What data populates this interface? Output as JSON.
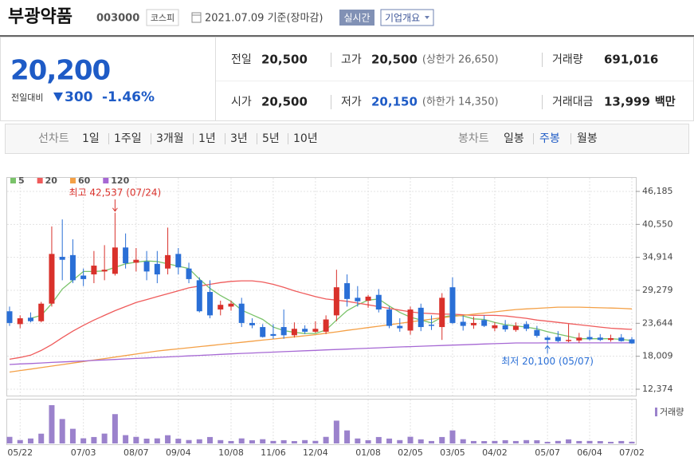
{
  "header": {
    "title": "부광약품",
    "code": "003000",
    "market": "코스피",
    "date": "2021.07.09 기준(장마감)",
    "realtime": "실시간",
    "company": "기업개요"
  },
  "quote": {
    "price": "20,200",
    "change_label": "전일대비",
    "change": "300",
    "change_rate": "-1.46%"
  },
  "summary": [
    {
      "label": "전일",
      "value": "20,500"
    },
    {
      "label": "고가",
      "value": "20,500",
      "note": "(상한가 26,650)"
    },
    {
      "label": "거래량",
      "value": "691,016"
    },
    {
      "label": "시가",
      "value": "20,500"
    },
    {
      "label": "저가",
      "value": "20,150",
      "note": "(하한가 14,350)"
    },
    {
      "label": "거래대금",
      "value": "13,999",
      "unit": "백만"
    }
  ],
  "tabs": {
    "line_label": "선차트",
    "line": [
      "1일",
      "1주일",
      "3개월",
      "1년",
      "3년",
      "5년",
      "10년"
    ],
    "candle_label": "봉차트",
    "candle": [
      "일봉",
      "주봉",
      "월봉"
    ],
    "active_candle": 1
  },
  "chart_data": {
    "type": "candlestick",
    "categories": [
      null,
      "05/22",
      null,
      null,
      null,
      null,
      null,
      "07/03",
      null,
      null,
      null,
      null,
      "08/07",
      null,
      null,
      null,
      "09/04",
      null,
      null,
      null,
      null,
      "10/08",
      null,
      null,
      null,
      "11/06",
      null,
      null,
      null,
      "12/04",
      null,
      null,
      null,
      null,
      "01/08",
      null,
      null,
      null,
      "02/05",
      null,
      null,
      null,
      "03/05",
      null,
      null,
      null,
      "04/02",
      null,
      null,
      null,
      null,
      "05/07",
      null,
      null,
      null,
      "06/04",
      null,
      null,
      null,
      "07/02"
    ],
    "open": [
      25700,
      23500,
      24600,
      24000,
      27000,
      35000,
      35300,
      31800,
      32000,
      32500,
      32100,
      36600,
      34000,
      34200,
      33800,
      33000,
      35500,
      33000,
      31000,
      29000,
      26000,
      26500,
      27000,
      23700,
      23000,
      21800,
      23000,
      21600,
      22700,
      22200,
      22200,
      25000,
      30500,
      28000,
      27500,
      28500,
      26000,
      23200,
      22400,
      26300,
      23400,
      23000,
      29800,
      23900,
      23300,
      24200,
      22800,
      23300,
      22500,
      23500,
      22500,
      21200,
      21300,
      20600,
      20700,
      21300,
      21200,
      20800,
      21200,
      20900
    ],
    "high": [
      26500,
      25000,
      25500,
      27300,
      40200,
      41400,
      38000,
      33000,
      36000,
      37000,
      42537,
      39000,
      36500,
      36000,
      36000,
      40000,
      36500,
      34000,
      31500,
      31000,
      27500,
      27500,
      28000,
      24500,
      23500,
      23500,
      26000,
      23800,
      23300,
      24000,
      25000,
      32800,
      32000,
      30000,
      28500,
      29500,
      26500,
      24500,
      26500,
      27000,
      25000,
      28800,
      31500,
      25000,
      24800,
      25000,
      23800,
      24200,
      23800,
      24000,
      23200,
      21500,
      22300,
      23500,
      22000,
      22500,
      21800,
      21700,
      21800,
      21300
    ],
    "low": [
      23200,
      22800,
      23800,
      23800,
      26500,
      31000,
      30500,
      30000,
      30500,
      31000,
      31800,
      33000,
      32500,
      31000,
      30500,
      32000,
      32000,
      30500,
      25500,
      24500,
      25000,
      25800,
      23000,
      22800,
      21200,
      21000,
      21000,
      21200,
      21800,
      22000,
      21800,
      24000,
      26500,
      26500,
      26300,
      25500,
      22800,
      22200,
      21700,
      22300,
      22500,
      20800,
      23500,
      22400,
      22700,
      23000,
      22300,
      22200,
      22200,
      22300,
      21200,
      20100,
      20400,
      20400,
      20300,
      20700,
      20600,
      20500,
      20500,
      20150
    ],
    "close": [
      23700,
      24500,
      24000,
      27000,
      35500,
      34500,
      31000,
      31200,
      33500,
      32800,
      36600,
      33900,
      34500,
      32500,
      32000,
      35300,
      33200,
      31200,
      25700,
      25000,
      26800,
      27000,
      23700,
      23300,
      21300,
      21500,
      21600,
      22700,
      22200,
      22700,
      24300,
      29800,
      27800,
      27400,
      28200,
      26000,
      23200,
      22800,
      26000,
      23000,
      23200,
      28000,
      23700,
      23200,
      23700,
      23200,
      23300,
      22600,
      23200,
      22700,
      21500,
      20800,
      20600,
      20800,
      21200,
      20900,
      20800,
      21100,
      20600,
      20200
    ],
    "up_color": "#d9312b",
    "down_color": "#2a6fd6",
    "series": [
      {
        "name": "5",
        "color": "#7ac36a",
        "values": [
          null,
          null,
          24500,
          25000,
          27000,
          29500,
          31000,
          32500,
          32500,
          32600,
          33200,
          33800,
          34100,
          34300,
          34200,
          33800,
          33400,
          33000,
          31200,
          29600,
          28400,
          27400,
          25900,
          25100,
          24300,
          23000,
          22400,
          22100,
          21900,
          21900,
          22500,
          24200,
          25800,
          26800,
          27600,
          27800,
          26600,
          25500,
          24700,
          24200,
          23700,
          24700,
          25000,
          24900,
          24400,
          24300,
          23800,
          23400,
          23200,
          23000,
          22700,
          22200,
          21800,
          21400,
          21000,
          21000,
          21000,
          21000,
          20900,
          20700
        ]
      },
      {
        "name": "20",
        "color": "#ef5b5b",
        "values": [
          17500,
          17800,
          18200,
          19000,
          20000,
          21200,
          22300,
          23300,
          24200,
          25000,
          25800,
          26500,
          27200,
          27700,
          28200,
          28700,
          29200,
          29700,
          30000,
          30300,
          30600,
          30800,
          30900,
          30900,
          30700,
          30300,
          29800,
          29200,
          28700,
          28200,
          27800,
          27600,
          27400,
          27100,
          26800,
          26500,
          26200,
          25900,
          25600,
          25400,
          25300,
          25200,
          25200,
          25100,
          25000,
          25000,
          25000,
          24900,
          24700,
          24500,
          24200,
          24000,
          23800,
          23600,
          23400,
          23200,
          23000,
          22800,
          22700,
          22600
        ]
      },
      {
        "name": "60",
        "color": "#f4a046",
        "values": [
          15300,
          15560,
          15810,
          16070,
          16330,
          16590,
          16840,
          17100,
          17360,
          17610,
          17870,
          18130,
          18380,
          18640,
          18900,
          19090,
          19270,
          19460,
          19650,
          19830,
          20020,
          20210,
          20390,
          20580,
          20770,
          20950,
          21140,
          21330,
          21510,
          21700,
          21940,
          22180,
          22430,
          22670,
          22910,
          23150,
          23390,
          23640,
          23880,
          24120,
          24360,
          24600,
          24800,
          25000,
          25200,
          25400,
          25600,
          25800,
          26000,
          26100,
          26200,
          26300,
          26400,
          26400,
          26400,
          26350,
          26300,
          26250,
          26200,
          26100
        ]
      },
      {
        "name": "120",
        "color": "#a668d4",
        "values": [
          16600,
          16690,
          16770,
          16860,
          16950,
          17030,
          17120,
          17200,
          17290,
          17380,
          17460,
          17550,
          17640,
          17720,
          17810,
          17900,
          17980,
          18070,
          18150,
          18240,
          18330,
          18410,
          18500,
          18570,
          18650,
          18720,
          18790,
          18870,
          18940,
          19010,
          19090,
          19160,
          19230,
          19310,
          19380,
          19450,
          19530,
          19600,
          19660,
          19720,
          19790,
          19850,
          19910,
          19970,
          20030,
          20100,
          20160,
          20220,
          20280,
          20280,
          20280,
          20290,
          20290,
          20290,
          20290,
          20300,
          20300,
          20300,
          20300,
          20300
        ]
      }
    ],
    "volume_label": "거래량",
    "volume_color": "#9b82cc",
    "volume": [
      810000,
      420000,
      610000,
      1200000,
      4700000,
      3000000,
      1800000,
      630000,
      790000,
      1210000,
      3600000,
      1020000,
      810000,
      590000,
      620000,
      1010000,
      580000,
      420000,
      510000,
      790000,
      410000,
      300000,
      620000,
      390000,
      520000,
      310000,
      400000,
      290000,
      410000,
      320000,
      810000,
      2800000,
      1600000,
      610000,
      400000,
      790000,
      600000,
      410000,
      820000,
      500000,
      300000,
      790000,
      1600000,
      520000,
      300000,
      290000,
      310000,
      400000,
      300000,
      410000,
      390000,
      200000,
      310000,
      500000,
      300000,
      310000,
      290000,
      200000,
      300000,
      210000
    ],
    "ylim": [
      12374,
      46185
    ],
    "yticks": [
      {
        "value": 12374,
        "label": "12,374"
      },
      {
        "value": 18009,
        "label": "18,009"
      },
      {
        "value": 23644,
        "label": "23,644"
      },
      {
        "value": 29279,
        "label": "29,279"
      },
      {
        "value": 34914,
        "label": "34,914"
      },
      {
        "value": 40550,
        "label": "40,550"
      },
      {
        "value": 46185,
        "label": "46,185"
      }
    ],
    "grid": true,
    "annotations": [
      {
        "text": "최고 42,537 (07/24)",
        "value": 42537,
        "kind": "high",
        "color": "#d9312b"
      },
      {
        "text": "최저 20,100 (05/07)",
        "value": 20100,
        "kind": "low",
        "color": "#2a6fd6"
      }
    ]
  }
}
